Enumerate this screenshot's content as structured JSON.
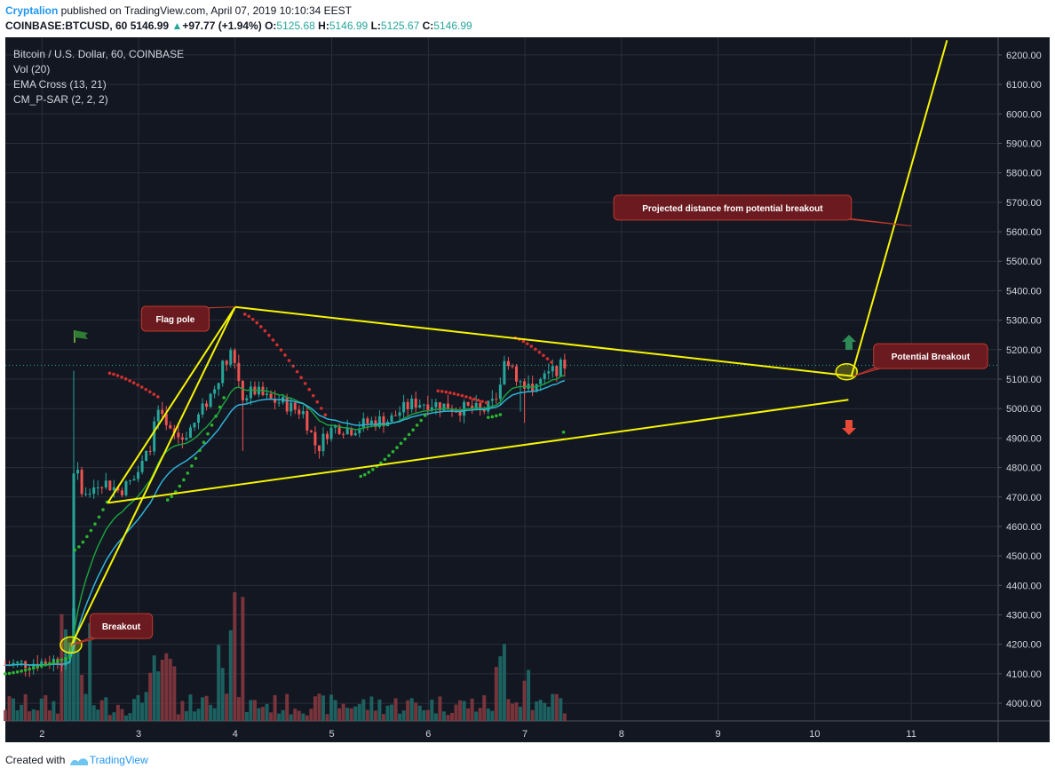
{
  "header": {
    "author": "Cryptalion",
    "published": " published on TradingView.com, April 07, 2019 10:10:34 EEST"
  },
  "quote": {
    "symbol": "COINBASE:BTCUSD, 60",
    "last": "5146.99",
    "change_arrow": "▲",
    "change": "+97.77 (+1.94%)",
    "o_label": "O:",
    "o": "5125.68",
    "h_label": "H:",
    "h": "5146.99",
    "l_label": "L:",
    "l": "5125.67",
    "c_label": "C:",
    "c": "5146.99"
  },
  "legend": {
    "title": "Bitcoin / U.S. Dollar, 60, COINBASE",
    "vol": "Vol (20)",
    "ema": "EMA Cross (13, 21)",
    "psar": "CM_P-SAR (2, 2, 2)"
  },
  "footer": {
    "created": "Created with",
    "brand": "TradingView"
  },
  "colors": {
    "background": "#131722",
    "grid": "#2a2e39",
    "up": "#26a69a",
    "down": "#ef5350",
    "trend": "#f5f500",
    "ema_fast": "#1b9e3e",
    "ema_slow": "#2db3d6",
    "sar_up": "#2bb52f",
    "sar_down": "#d32f2f",
    "callout_fill": "#6b1a1f"
  },
  "chart_data": {
    "type": "candlestick",
    "ylim": [
      3940,
      6260
    ],
    "xlim": [
      1.62,
      11.9
    ],
    "y_ticks": [
      "4000.00",
      "4100.00",
      "4200.00",
      "4300.00",
      "4400.00",
      "4500.00",
      "4600.00",
      "4700.00",
      "4800.00",
      "4900.00",
      "5000.00",
      "5100.00",
      "5200.00",
      "5300.00",
      "5400.00",
      "5500.00",
      "5600.00",
      "5700.00",
      "5800.00",
      "5900.00",
      "6000.00",
      "6100.00",
      "6200.00"
    ],
    "x_ticks": [
      "2",
      "3",
      "4",
      "5",
      "6",
      "7",
      "8",
      "9",
      "10",
      "11"
    ],
    "x_tick_values": [
      2,
      3,
      4,
      5,
      6,
      7,
      8,
      9,
      10,
      11
    ],
    "current_price": 5146.99,
    "price_path": [
      [
        1.62,
        4130
      ],
      [
        2.0,
        4140
      ],
      [
        2.2,
        4150
      ],
      [
        2.3,
        4185
      ],
      [
        2.33,
        4600
      ],
      [
        2.36,
        4780
      ],
      [
        2.45,
        4700
      ],
      [
        2.6,
        4760
      ],
      [
        2.8,
        4720
      ],
      [
        2.95,
        4760
      ],
      [
        3.1,
        4850
      ],
      [
        3.2,
        4990
      ],
      [
        3.3,
        4920
      ],
      [
        3.45,
        4900
      ],
      [
        3.6,
        4960
      ],
      [
        3.75,
        5050
      ],
      [
        3.88,
        5150
      ],
      [
        3.95,
        5200
      ],
      [
        4.0,
        5150
      ],
      [
        4.08,
        5040
      ],
      [
        4.2,
        5060
      ],
      [
        4.35,
        5030
      ],
      [
        4.5,
        5020
      ],
      [
        4.6,
        5000
      ],
      [
        4.7,
        4990
      ],
      [
        4.78,
        4920
      ],
      [
        4.85,
        4860
      ],
      [
        4.95,
        4920
      ],
      [
        5.05,
        4940
      ],
      [
        5.2,
        4930
      ],
      [
        5.35,
        4950
      ],
      [
        5.5,
        4960
      ],
      [
        5.6,
        4960
      ],
      [
        5.7,
        4990
      ],
      [
        5.85,
        5020
      ],
      [
        6.0,
        5020
      ],
      [
        6.15,
        5010
      ],
      [
        6.3,
        5000
      ],
      [
        6.45,
        5000
      ],
      [
        6.55,
        4990
      ],
      [
        6.65,
        5010
      ],
      [
        6.72,
        5050
      ],
      [
        6.78,
        5150
      ],
      [
        6.85,
        5170
      ],
      [
        6.92,
        5100
      ],
      [
        7.0,
        5060
      ],
      [
        7.1,
        5080
      ],
      [
        7.2,
        5100
      ],
      [
        7.3,
        5130
      ],
      [
        7.4,
        5146.99
      ]
    ],
    "volume_ylim": [
      0,
      9
    ],
    "annotations": [
      {
        "text": "Flag pole",
        "x": 3.38,
        "y": 5305
      },
      {
        "text": "Breakout",
        "x": 2.82,
        "y": 4262
      },
      {
        "text": "Projected distance from potential breakout",
        "x": 9.15,
        "y": 5682
      },
      {
        "text": "Potential Breakout",
        "x": 11.2,
        "y": 5178
      }
    ],
    "trend_lines": [
      {
        "name": "flag-pole-line",
        "points": [
          [
            2.3,
            4195
          ],
          [
            4.0,
            5345
          ]
        ]
      },
      {
        "name": "upper-triangle-line",
        "points": [
          [
            4.0,
            5345
          ],
          [
            10.4,
            5110
          ]
        ]
      },
      {
        "name": "lower-triangle-line",
        "points": [
          [
            2.68,
            4680
          ],
          [
            10.35,
            5030
          ]
        ]
      },
      {
        "name": "left-triangle-line",
        "points": [
          [
            2.68,
            4680
          ],
          [
            4.0,
            5345
          ]
        ]
      },
      {
        "name": "projection-line",
        "points": [
          [
            10.38,
            5110
          ],
          [
            11.37,
            6250
          ]
        ]
      }
    ],
    "highlight_circles": [
      [
        2.3,
        4198
      ],
      [
        10.33,
        5125
      ]
    ]
  }
}
